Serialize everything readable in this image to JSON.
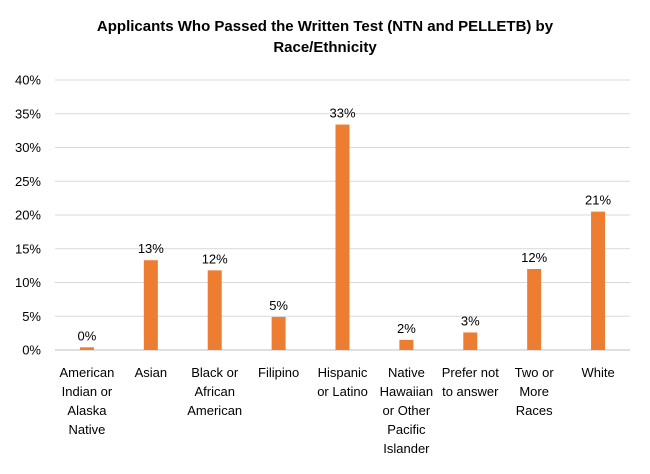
{
  "chart_data": {
    "type": "bar",
    "title_lines": [
      "Applicants Who Passed the Written Test (NTN and PELLETB) by",
      "Race/Ethnicity"
    ],
    "categories": [
      [
        "American",
        "Indian or",
        "Alaska",
        "Native"
      ],
      [
        "Asian"
      ],
      [
        "Black or",
        "African",
        "American"
      ],
      [
        "Filipino"
      ],
      [
        "Hispanic",
        "or Latino"
      ],
      [
        "Native",
        "Hawaiian",
        "or Other",
        "Pacific",
        "Islander"
      ],
      [
        "Prefer not",
        "to answer"
      ],
      [
        "Two or",
        "More",
        "Races"
      ],
      [
        "White"
      ]
    ],
    "values": [
      0.4,
      13.3,
      11.8,
      4.9,
      33.4,
      1.5,
      2.6,
      12.0,
      20.5
    ],
    "data_labels": [
      "0%",
      "13%",
      "12%",
      "5%",
      "33%",
      "2%",
      "3%",
      "12%",
      "21%"
    ],
    "y_ticks": [
      "0%",
      "5%",
      "10%",
      "15%",
      "20%",
      "25%",
      "30%",
      "35%",
      "40%"
    ],
    "ylim": [
      0,
      40
    ],
    "y_step": 5,
    "xlabel": "",
    "ylabel": "",
    "grid": true,
    "legend": "none",
    "bar_color": "#ed7d31"
  }
}
